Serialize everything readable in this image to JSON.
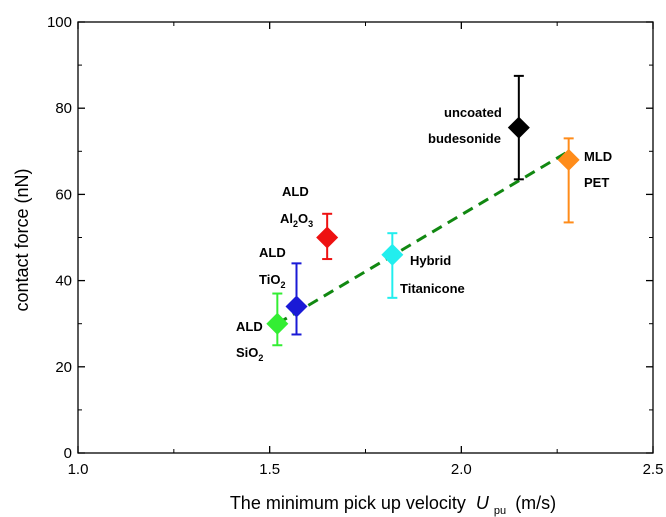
{
  "chart_data": {
    "type": "scatter",
    "title": "",
    "xlabel": "The minimum pick up velocity",
    "xlabel_symbol": "U",
    "xlabel_subscript": "pu",
    "xlabel_unit": "(m/s)",
    "ylabel": "contact force (nN)",
    "xlim": [
      1.0,
      2.5
    ],
    "ylim": [
      0,
      100
    ],
    "x_ticks": [
      "1.0",
      "1.5",
      "2.0",
      "2.5"
    ],
    "y_ticks": [
      "0",
      "20",
      "40",
      "60",
      "80",
      "100"
    ],
    "grid": false,
    "legend": "none",
    "points": [
      {
        "name": "ALD SiO2",
        "x": 1.52,
        "y": 30,
        "err_low": 25,
        "err_high": 37,
        "color": "#33ee33"
      },
      {
        "name": "ALD TiO2",
        "x": 1.57,
        "y": 34,
        "err_low": 27.5,
        "err_high": 44,
        "color": "#1a1ad6"
      },
      {
        "name": "ALD Al2O3",
        "x": 1.65,
        "y": 50,
        "err_low": 45,
        "err_high": 55.5,
        "color": "#ee1111"
      },
      {
        "name": "Hybrid Titanicone",
        "x": 1.82,
        "y": 46,
        "err_low": 36,
        "err_high": 51,
        "color": "#22eeee"
      },
      {
        "name": "uncoated budesonide",
        "x": 2.15,
        "y": 75.5,
        "err_low": 63.5,
        "err_high": 87.5,
        "color": "#000000"
      },
      {
        "name": "MLD PET",
        "x": 2.28,
        "y": 68,
        "err_low": 53.5,
        "err_high": 73,
        "color": "#ff8c1a"
      }
    ],
    "fit_line": {
      "x": [
        1.52,
        2.28
      ],
      "y": [
        30,
        70
      ],
      "style": "dashed",
      "color": "#118811"
    },
    "annotations": [
      {
        "id": "sio2",
        "lines": [
          {
            "text": "ALD"
          },
          {
            "text": "SiO",
            "sub": "2"
          }
        ]
      },
      {
        "id": "tio2",
        "lines": [
          {
            "text": "ALD"
          },
          {
            "text": "TiO",
            "sub": "2"
          }
        ]
      },
      {
        "id": "al2o3",
        "lines": [
          {
            "text": "ALD"
          },
          {
            "text": "Al",
            "sub": "2",
            "text2": "O",
            "sub2": "3"
          }
        ]
      },
      {
        "id": "hybrid",
        "lines": [
          {
            "text": "Hybrid"
          },
          {
            "text": "Titanicone"
          }
        ]
      },
      {
        "id": "uncoated",
        "lines": [
          {
            "text": "uncoated"
          },
          {
            "text": "budesonide"
          }
        ]
      },
      {
        "id": "mld",
        "lines": [
          {
            "text": "MLD"
          },
          {
            "text": "PET"
          }
        ]
      }
    ]
  }
}
